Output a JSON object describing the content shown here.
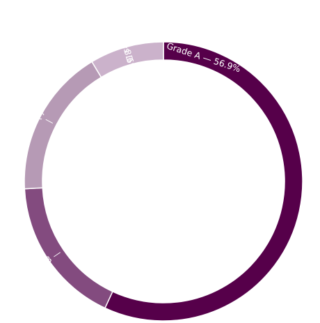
{
  "chart_data": {
    "type": "pie",
    "variant": "donut",
    "title": "",
    "slices": [
      {
        "label": "Grade A",
        "value": 56.9,
        "text": "Grade A — 56.9%",
        "color": "#56004a"
      },
      {
        "label": "Grade B",
        "value": 17.25,
        "text": "Grade B — 17.25%",
        "color": "#834b7f"
      },
      {
        "label": "Grade C",
        "value": 17.25,
        "text": "Grade C — 17.25%",
        "color": "#b69ab5"
      },
      {
        "label": "Grades D & E",
        "value": 8.6,
        "lines": [
          "Grades D & E",
          "8.6%"
        ],
        "color": "#cbb2cb"
      }
    ],
    "legend": "none"
  }
}
